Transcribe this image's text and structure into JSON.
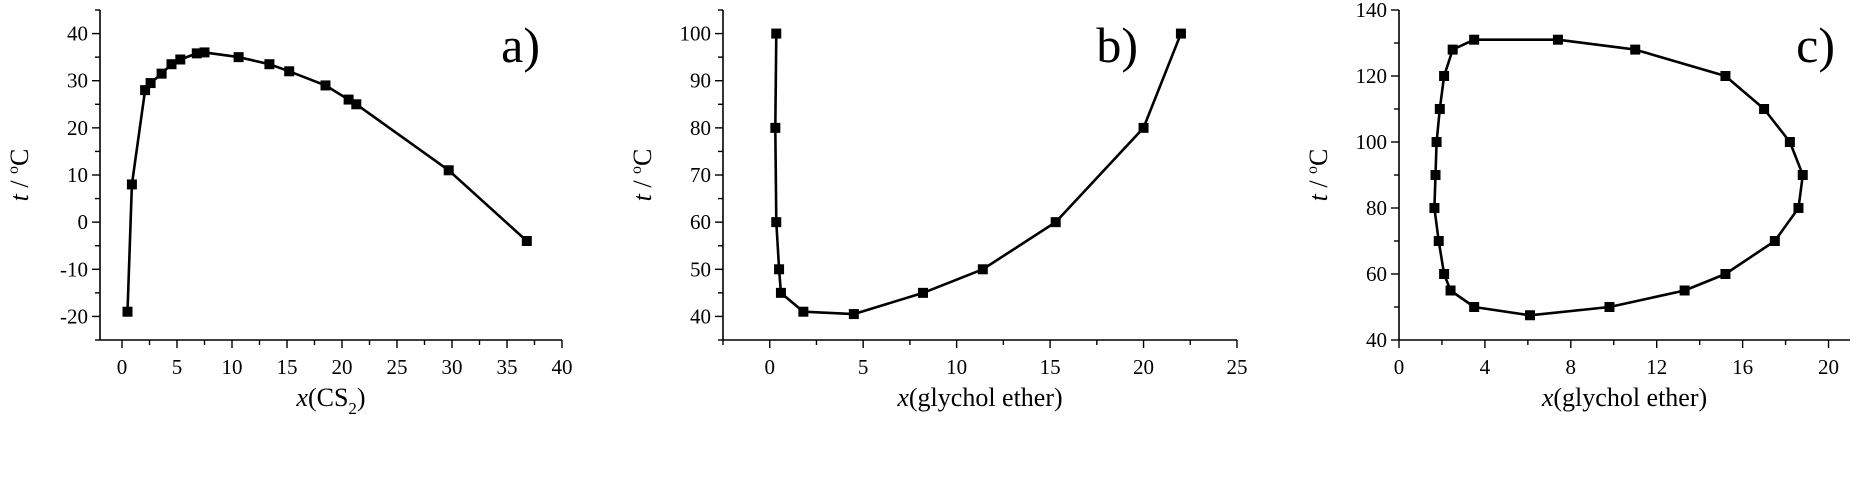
{
  "chart_data": [
    {
      "type": "line",
      "panel_label": "a)",
      "xlabel": {
        "var": "x",
        "text": "(CS",
        "sub": "2",
        "tail": ")"
      },
      "ylabel": {
        "var": "t",
        "mid": " / ",
        "sup": "o",
        "tail": "C"
      },
      "xlim": [
        -2,
        40
      ],
      "ylim": [
        -25,
        45
      ],
      "xticks": [
        0,
        5,
        10,
        15,
        20,
        25,
        30,
        35,
        40
      ],
      "yticks": [
        -20,
        -10,
        0,
        10,
        20,
        30,
        40
      ],
      "x": [
        0.5,
        0.9,
        2.1,
        2.6,
        3.6,
        4.5,
        5.3,
        6.8,
        7.5,
        10.6,
        13.4,
        15.2,
        18.5,
        20.6,
        21.3,
        29.7,
        36.8
      ],
      "y": [
        -19,
        8,
        28,
        29.5,
        31.5,
        33.5,
        34.5,
        35.8,
        36,
        35,
        33.5,
        32,
        29,
        26,
        25,
        11,
        -4
      ]
    },
    {
      "type": "line",
      "panel_label": "b)",
      "xlabel": {
        "var": "x",
        "text": "(glychol ether)",
        "sub": "",
        "tail": ""
      },
      "ylabel": {
        "var": "t",
        "mid": " / ",
        "sup": "o",
        "tail": "C"
      },
      "xlim": [
        -2.5,
        25
      ],
      "ylim": [
        35,
        105
      ],
      "xticks": [
        0,
        5,
        10,
        15,
        20,
        25
      ],
      "yticks": [
        40,
        50,
        60,
        70,
        80,
        90,
        100
      ],
      "x": [
        0.35,
        0.3,
        0.35,
        0.5,
        0.6,
        1.8,
        4.5,
        8.2,
        11.4,
        15.3,
        20,
        22
      ],
      "y": [
        100,
        80,
        60,
        50,
        45,
        41,
        40.5,
        45,
        50,
        60,
        80,
        100
      ]
    },
    {
      "type": "line",
      "panel_label": "c)",
      "xlabel": {
        "var": "x",
        "text": "(glychol ether)",
        "sub": "",
        "tail": ""
      },
      "ylabel": {
        "var": "t",
        "mid": " / ",
        "sup": "o",
        "tail": "C"
      },
      "xlim": [
        0,
        21
      ],
      "ylim": [
        40,
        140
      ],
      "xticks": [
        0,
        4,
        8,
        12,
        16,
        20
      ],
      "yticks": [
        40,
        60,
        80,
        100,
        120,
        140
      ],
      "x": [
        7.4,
        11.0,
        15.2,
        17.0,
        18.2,
        18.8,
        18.6,
        17.5,
        15.2,
        13.3,
        9.8,
        6.1,
        3.5,
        2.4,
        2.1,
        1.85,
        1.65,
        1.7,
        1.75,
        1.9,
        2.1,
        2.5,
        3.5,
        7.4
      ],
      "y": [
        131,
        128,
        120,
        110,
        100,
        90,
        80,
        70,
        60,
        55,
        50,
        47.5,
        50,
        55,
        60,
        70,
        80,
        90,
        100,
        110,
        120,
        128,
        131,
        131
      ],
      "closed": true
    }
  ]
}
